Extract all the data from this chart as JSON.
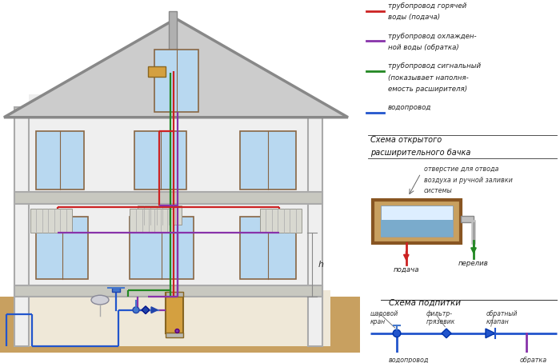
{
  "bg_color": "#ffffff",
  "house_wall_fill": "#efefef",
  "house_wall_stroke": "#aaaaaa",
  "roof_fill": "#cccccc",
  "roof_stroke": "#888888",
  "chimney_fill": "#b0a090",
  "chimney_stroke": "#888877",
  "ground_fill": "#c8a060",
  "basement_fill": "#efe8d8",
  "window_fill": "#b8d8f0",
  "window_stroke": "#886644",
  "window_frame": "#886644",
  "floor_color": "#c8c8c0",
  "radiator_fill": "#d8d8d0",
  "radiator_stroke": "#999990",
  "boiler_fill": "#d4a040",
  "boiler_stroke": "#886622",
  "pipe_hot": "#cc2222",
  "pipe_cold": "#8833aa",
  "pipe_signal": "#228822",
  "pipe_water": "#2255cc",
  "pipe_lw": 1.6,
  "legend_items": [
    {
      "color": "#cc2222",
      "label": "трубопровод горячей\nводы (подача)"
    },
    {
      "color": "#8833aa",
      "label": "трубопровод охлажден-\nной воды (обратка)"
    },
    {
      "color": "#228822",
      "label": "трубопровод сигнальный\n(показывает наполня-\nемость расширителя)"
    },
    {
      "color": "#2255cc",
      "label": "водопровод"
    }
  ],
  "title_expansion": "Схема открытого\nрасширительного бачка",
  "title_makeup": "Схема подпитки",
  "label_podacha": "подача",
  "label_pereliv": "перелив",
  "label_otverstie": "отверстие для отвода\nвоздуха и ручной заливки\nсистемы",
  "label_sharovoy": "шаровой\nкран",
  "label_filter": "фильтр-\nгрязевик",
  "label_obratny": "обратный\nклапан",
  "label_vodoprovod": "водопровод",
  "label_obratka": "обратка",
  "label_h": "h"
}
